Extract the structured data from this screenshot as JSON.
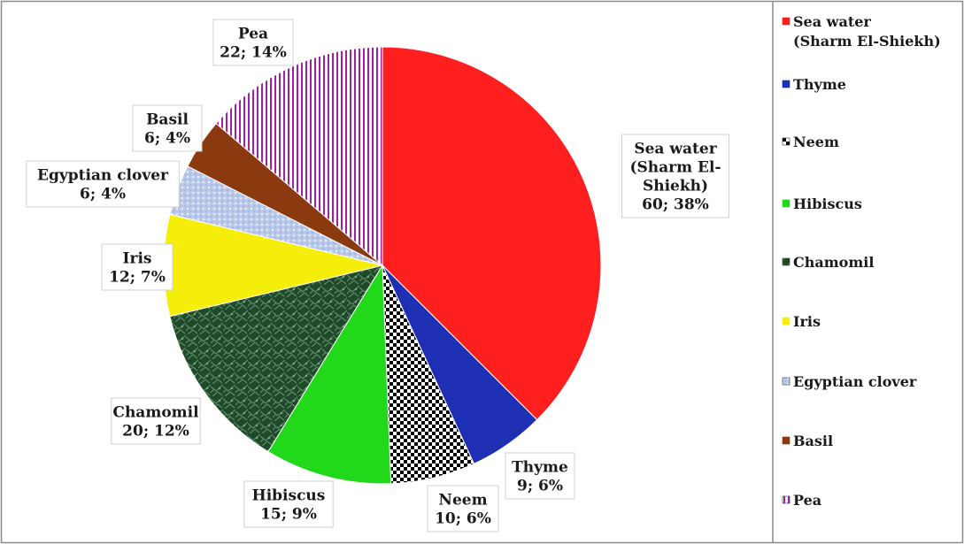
{
  "chart_data": {
    "type": "pie",
    "title": "",
    "slices": [
      {
        "label_lines": [
          "Sea water",
          "(Sharm El-",
          "Shiekh)"
        ],
        "legend_lines": [
          "Sea water",
          "(Sharm El-Shiekh)"
        ],
        "value": 60,
        "percent": 38,
        "value_text": "60; 38%",
        "color": "#ff1f1f",
        "pattern": "solid"
      },
      {
        "label_lines": [
          "Thyme"
        ],
        "legend_lines": [
          "Thyme"
        ],
        "value": 9,
        "percent": 6,
        "value_text": "9; 6%",
        "color": "#1f2fb4",
        "pattern": "solid"
      },
      {
        "label_lines": [
          "Neem"
        ],
        "legend_lines": [
          "Neem"
        ],
        "value": 10,
        "percent": 6,
        "value_text": "10; 6%",
        "color": "#000000",
        "pattern": "checker"
      },
      {
        "label_lines": [
          "Hibiscus"
        ],
        "legend_lines": [
          "Hibiscus"
        ],
        "value": 15,
        "percent": 9,
        "value_text": "15; 9%",
        "color": "#22d81a",
        "pattern": "solid"
      },
      {
        "label_lines": [
          "Chamomil"
        ],
        "legend_lines": [
          "Chamomil"
        ],
        "value": 20,
        "percent": 12,
        "value_text": "20; 12%",
        "color": "#1e4a2a",
        "pattern": "texture"
      },
      {
        "label_lines": [
          "Iris"
        ],
        "legend_lines": [
          "Iris"
        ],
        "value": 12,
        "percent": 7,
        "value_text": "12; 7%",
        "color": "#f5ee0a",
        "pattern": "solid"
      },
      {
        "label_lines": [
          "Egyptian clover"
        ],
        "legend_lines": [
          "Egyptian clover"
        ],
        "value": 6,
        "percent": 4,
        "value_text": "6; 4%",
        "color": "#b8c8ea",
        "pattern": "dots"
      },
      {
        "label_lines": [
          "Basil"
        ],
        "legend_lines": [
          "Basil"
        ],
        "value": 6,
        "percent": 4,
        "value_text": "6; 4%",
        "color": "#8b3a10",
        "pattern": "solid"
      },
      {
        "label_lines": [
          "Pea"
        ],
        "legend_lines": [
          "Pea"
        ],
        "value": 22,
        "percent": 14,
        "value_text": "22; 14%",
        "color": "#a020a0",
        "pattern": "vstripes"
      }
    ],
    "legend_position": "right",
    "start_angle": "12 o'clock",
    "direction": "clockwise"
  }
}
